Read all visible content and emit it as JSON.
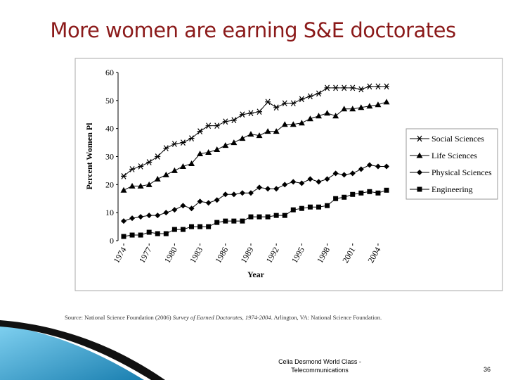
{
  "title": "More women are earning S&E doctorates",
  "chart_data": {
    "type": "line",
    "x": [
      1974,
      1975,
      1976,
      1977,
      1978,
      1979,
      1980,
      1981,
      1982,
      1983,
      1984,
      1985,
      1986,
      1987,
      1988,
      1989,
      1990,
      1991,
      1992,
      1993,
      1994,
      1995,
      1996,
      1997,
      1998,
      1999,
      2000,
      2001,
      2002,
      2003,
      2004,
      2005
    ],
    "series": [
      {
        "name": "Social Sciences",
        "marker": "star",
        "color": "#000000",
        "values": [
          23,
          25.5,
          26.5,
          28,
          30,
          33,
          34.5,
          35,
          36.5,
          39,
          41,
          41,
          42.5,
          43,
          45,
          45.5,
          46,
          49.5,
          47.5,
          49,
          49,
          50.5,
          51.5,
          52.5,
          54.5,
          54.5,
          54.5,
          54.5,
          54,
          55,
          55,
          55
        ]
      },
      {
        "name": "Life Sciences",
        "marker": "triangle",
        "color": "#000000",
        "values": [
          18,
          19.5,
          19.5,
          20,
          22,
          23.5,
          25,
          26.5,
          27.5,
          31,
          31.5,
          32.5,
          34,
          35,
          36.5,
          38,
          37.5,
          39,
          39,
          41.5,
          41.5,
          42,
          43.5,
          44.5,
          45.5,
          44.5,
          47,
          47,
          47.5,
          48,
          48.5,
          49.5
        ]
      },
      {
        "name": "Physical Sciences",
        "marker": "diamond",
        "color": "#000000",
        "values": [
          7,
          8,
          8.5,
          9,
          9,
          10,
          11,
          12.5,
          11.5,
          14,
          13.5,
          14.5,
          16.5,
          16.5,
          17,
          17,
          19,
          18.5,
          18.5,
          20,
          21,
          20.5,
          22,
          21,
          22,
          24,
          23.5,
          24,
          25.5,
          27,
          26.5,
          26.5
        ]
      },
      {
        "name": "Engineering",
        "marker": "square",
        "color": "#000000",
        "values": [
          1.5,
          2,
          2,
          3,
          2.5,
          2.5,
          4,
          4,
          5,
          5,
          5,
          6.5,
          7,
          7,
          7,
          8.5,
          8.5,
          8.5,
          9,
          9,
          11,
          11.5,
          12,
          12,
          12.5,
          15,
          15.5,
          16.5,
          17,
          17.5,
          17,
          18
        ]
      }
    ],
    "xlim": [
      1974,
      2005
    ],
    "xticks": [
      1974,
      1977,
      1980,
      1983,
      1986,
      1989,
      1992,
      1995,
      1998,
      2001,
      2004
    ],
    "ylim": [
      0,
      60
    ],
    "yticks": [
      0,
      10,
      20,
      30,
      40,
      50,
      60
    ],
    "x_label": "Year",
    "y_label": "Percent Women Pl",
    "legend": "right"
  },
  "source": {
    "prefix": "Source: National Science Foundation (2006) ",
    "italic": "Survey of Earned Doctorates, 1974-2004",
    "suffix": ". Arlington, VA: National Science Foundation."
  },
  "footer": {
    "presenter": "Celia Desmond World Class - Telecommunications",
    "page": "36"
  }
}
